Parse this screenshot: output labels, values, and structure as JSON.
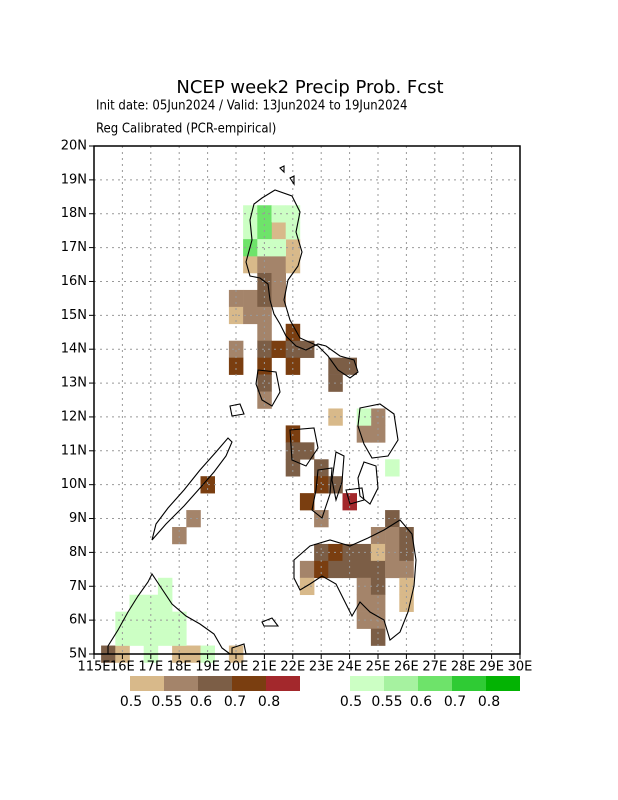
{
  "chart_data": {
    "type": "grid-map",
    "title": "NCEP week2 Precip Prob. Fcst",
    "subtitle": "Init date: 05Jun2024 / Valid: 13Jun2024 to 19Jun2024",
    "note": "Reg Calibrated (PCR-empirical)",
    "xlim": [
      115,
      130
    ],
    "ylim": [
      5,
      20
    ],
    "xticks": [
      {
        "value": 115,
        "label": "115E"
      },
      {
        "value": 116,
        "label": "16E"
      },
      {
        "value": 117,
        "label": "17E"
      },
      {
        "value": 118,
        "label": "18E"
      },
      {
        "value": 119,
        "label": "19E"
      },
      {
        "value": 120,
        "label": "20E"
      },
      {
        "value": 121,
        "label": "21E"
      },
      {
        "value": 122,
        "label": "22E"
      },
      {
        "value": 123,
        "label": "23E"
      },
      {
        "value": 124,
        "label": "24E"
      },
      {
        "value": 125,
        "label": "25E"
      },
      {
        "value": 126,
        "label": "26E"
      },
      {
        "value": 127,
        "label": "27E"
      },
      {
        "value": 128,
        "label": "28E"
      },
      {
        "value": 129,
        "label": "29E"
      },
      {
        "value": 130,
        "label": "30E"
      }
    ],
    "yticks": [
      {
        "value": 5,
        "label": "5N"
      },
      {
        "value": 6,
        "label": "6N"
      },
      {
        "value": 7,
        "label": "7N"
      },
      {
        "value": 8,
        "label": "8N"
      },
      {
        "value": 9,
        "label": "9N"
      },
      {
        "value": 10,
        "label": "10N"
      },
      {
        "value": 11,
        "label": "11N"
      },
      {
        "value": 12,
        "label": "12N"
      },
      {
        "value": 13,
        "label": "13N"
      },
      {
        "value": 14,
        "label": "14N"
      },
      {
        "value": 15,
        "label": "15N"
      },
      {
        "value": 16,
        "label": "16N"
      },
      {
        "value": 17,
        "label": "17N"
      },
      {
        "value": 18,
        "label": "18N"
      },
      {
        "value": 19,
        "label": "19N"
      },
      {
        "value": 20,
        "label": "20N"
      }
    ],
    "grid": true,
    "cell_size": 0.5,
    "legend_ticks": [
      0.5,
      0.55,
      0.6,
      0.7,
      0.8
    ],
    "below_colors": [
      "#d8b98a",
      "#a4846a",
      "#7c5e46",
      "#7a3e10",
      "#a3282c"
    ],
    "above_colors": [
      "#ccffc4",
      "#a6f2a0",
      "#6ee36a",
      "#2fcb34",
      "#03b303"
    ],
    "below_cells": [
      [
        121.5,
        17.5,
        0.5
      ],
      [
        122,
        17,
        0.5
      ],
      [
        120.5,
        16.5,
        0.5
      ],
      [
        121,
        16.5,
        0.55
      ],
      [
        121.5,
        16.5,
        0.55
      ],
      [
        122,
        16.5,
        0.5
      ],
      [
        121,
        16,
        0.6
      ],
      [
        121.5,
        16,
        0.55
      ],
      [
        120,
        15.5,
        0.55
      ],
      [
        120.5,
        15.5,
        0.55
      ],
      [
        121,
        15.5,
        0.6
      ],
      [
        121.5,
        15.5,
        0.55
      ],
      [
        120,
        15,
        0.5
      ],
      [
        120.5,
        15,
        0.55
      ],
      [
        121,
        15,
        0.55
      ],
      [
        121,
        14.5,
        0.55
      ],
      [
        122,
        14.5,
        0.7
      ],
      [
        120,
        14,
        0.55
      ],
      [
        121,
        14,
        0.6
      ],
      [
        121.5,
        14,
        0.7
      ],
      [
        122,
        14,
        0.6
      ],
      [
        122.5,
        14,
        0.6
      ],
      [
        120,
        13.5,
        0.7
      ],
      [
        121,
        13.5,
        0.7
      ],
      [
        122,
        13.5,
        0.7
      ],
      [
        123.5,
        13.5,
        0.6
      ],
      [
        124,
        13.5,
        0.6
      ],
      [
        121,
        13,
        0.6
      ],
      [
        123.5,
        13,
        0.6
      ],
      [
        121,
        12.5,
        0.55
      ],
      [
        123.5,
        12,
        0.5
      ],
      [
        125,
        12,
        0.55
      ],
      [
        122,
        11.5,
        0.7
      ],
      [
        124.5,
        11.5,
        0.55
      ],
      [
        125,
        11.5,
        0.55
      ],
      [
        122,
        11,
        0.6
      ],
      [
        122.5,
        11,
        0.6
      ],
      [
        122,
        10.5,
        0.6
      ],
      [
        123,
        10.5,
        0.6
      ],
      [
        119,
        10,
        0.7
      ],
      [
        123,
        10,
        0.7
      ],
      [
        123.5,
        10,
        0.6
      ],
      [
        122.5,
        9.5,
        0.7
      ],
      [
        124,
        9.5,
        0.8
      ],
      [
        118.5,
        9,
        0.55
      ],
      [
        123,
        9,
        0.55
      ],
      [
        125.5,
        9,
        0.6
      ],
      [
        118,
        8.5,
        0.55
      ],
      [
        125,
        8.5,
        0.55
      ],
      [
        125.5,
        8.5,
        0.55
      ],
      [
        126,
        8.5,
        0.6
      ],
      [
        123,
        8,
        0.6
      ],
      [
        123.5,
        8,
        0.7
      ],
      [
        124,
        8,
        0.6
      ],
      [
        124.5,
        8,
        0.6
      ],
      [
        125,
        8,
        0.5
      ],
      [
        125.5,
        8,
        0.55
      ],
      [
        126,
        8,
        0.6
      ],
      [
        122.5,
        7.5,
        0.55
      ],
      [
        123,
        7.5,
        0.7
      ],
      [
        123.5,
        7.5,
        0.6
      ],
      [
        124,
        7.5,
        0.6
      ],
      [
        124.5,
        7.5,
        0.6
      ],
      [
        125,
        7.5,
        0.6
      ],
      [
        125.5,
        7.5,
        0.55
      ],
      [
        126,
        7.5,
        0.55
      ],
      [
        122.5,
        7,
        0.5
      ],
      [
        124.5,
        7,
        0.55
      ],
      [
        125,
        7,
        0.6
      ],
      [
        126,
        7,
        0.5
      ],
      [
        124.5,
        6.5,
        0.55
      ],
      [
        125,
        6.5,
        0.55
      ],
      [
        126,
        6.5,
        0.5
      ],
      [
        124.5,
        6,
        0.55
      ],
      [
        125,
        6,
        0.55
      ],
      [
        125,
        5.5,
        0.6
      ],
      [
        115.5,
        5,
        0.6
      ],
      [
        116,
        5,
        0.5
      ],
      [
        118,
        5,
        0.5
      ],
      [
        118.5,
        5,
        0.5
      ],
      [
        120,
        5,
        0.5
      ]
    ],
    "above_cells": [
      [
        120.5,
        18,
        0.5
      ],
      [
        121,
        18,
        0.6
      ],
      [
        121.5,
        18,
        0.5
      ],
      [
        122,
        18,
        0.5
      ],
      [
        120.5,
        17.5,
        0.5
      ],
      [
        121,
        17.5,
        0.6
      ],
      [
        122,
        17.5,
        0.5
      ],
      [
        120.5,
        17,
        0.6
      ],
      [
        121,
        17,
        0.5
      ],
      [
        121.5,
        17,
        0.5
      ],
      [
        124.5,
        12,
        0.5
      ],
      [
        125.5,
        10.5,
        0.5
      ],
      [
        117.5,
        7,
        0.5
      ],
      [
        116.5,
        6.5,
        0.5
      ],
      [
        117,
        6.5,
        0.5
      ],
      [
        117.5,
        6.5,
        0.5
      ],
      [
        116,
        6,
        0.5
      ],
      [
        116.5,
        6,
        0.5
      ],
      [
        117,
        6,
        0.5
      ],
      [
        117.5,
        6,
        0.5
      ],
      [
        118,
        6,
        0.5
      ],
      [
        116,
        5.5,
        0.5
      ],
      [
        116.5,
        5.5,
        0.5
      ],
      [
        117,
        5.5,
        0.5
      ],
      [
        117.5,
        5.5,
        0.5
      ],
      [
        118,
        5.5,
        0.5
      ],
      [
        117,
        5,
        0.5
      ],
      [
        119,
        5,
        0.5
      ]
    ]
  }
}
